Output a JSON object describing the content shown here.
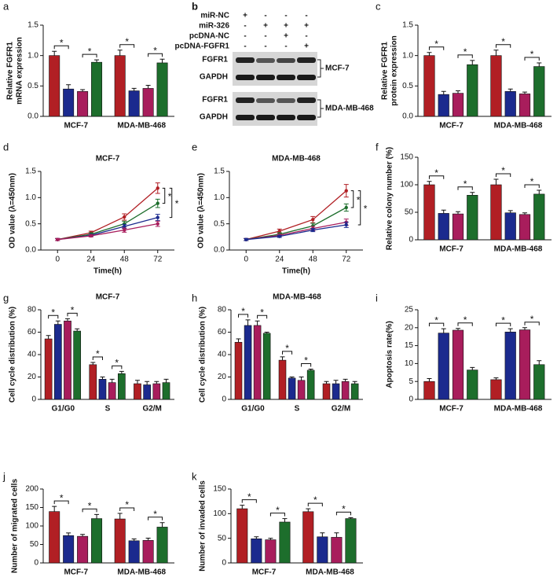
{
  "chart_data": [
    {
      "panel": "a",
      "type": "bar",
      "ylabel": [
        "Relative FGFR1",
        "mRNA expression"
      ],
      "categories": [
        "MCF-7",
        "MDA-MB-468"
      ],
      "series": [
        {
          "color": "#b11f24",
          "values": [
            1.0,
            1.0
          ],
          "errors": [
            0.07,
            0.09
          ]
        },
        {
          "color": "#1b2a8e",
          "values": [
            0.45,
            0.42
          ],
          "errors": [
            0.07,
            0.04
          ]
        },
        {
          "color": "#a81d5c",
          "values": [
            0.41,
            0.46
          ],
          "errors": [
            0.03,
            0.05
          ]
        },
        {
          "color": "#1d6e2c",
          "values": [
            0.89,
            0.88
          ],
          "errors": [
            0.04,
            0.06
          ]
        }
      ],
      "ylim": [
        0,
        1.5
      ],
      "yticks": [
        {
          "value": 0,
          "label": "0.0"
        },
        {
          "value": 0.5,
          "label": "0.5"
        },
        {
          "value": 1,
          "label": "1.0"
        },
        {
          "value": 1.5,
          "label": "1.5"
        }
      ],
      "annotations": [
        {
          "label": "*",
          "category": 0,
          "series": [
            0,
            1
          ]
        },
        {
          "label": "*",
          "category": 0,
          "series": [
            2,
            3
          ]
        },
        {
          "label": "*",
          "category": 1,
          "series": [
            0,
            1
          ]
        },
        {
          "label": "*",
          "category": 1,
          "series": [
            2,
            3
          ]
        }
      ]
    },
    {
      "panel": "c",
      "type": "bar",
      "ylabel": [
        "Relative FGFR1",
        "protein expression"
      ],
      "categories": [
        "MCF-7",
        "MDA-MB-468"
      ],
      "series": [
        {
          "color": "#b11f24",
          "values": [
            1.0,
            1.0
          ],
          "errors": [
            0.05,
            0.09
          ]
        },
        {
          "color": "#1b2a8e",
          "values": [
            0.36,
            0.41
          ],
          "errors": [
            0.05,
            0.04
          ]
        },
        {
          "color": "#a81d5c",
          "values": [
            0.38,
            0.37
          ],
          "errors": [
            0.04,
            0.03
          ]
        },
        {
          "color": "#1d6e2c",
          "values": [
            0.85,
            0.82
          ],
          "errors": [
            0.07,
            0.06
          ]
        }
      ],
      "ylim": [
        0,
        1.5
      ],
      "yticks": [
        {
          "value": 0,
          "label": "0.0"
        },
        {
          "value": 0.5,
          "label": "0.5"
        },
        {
          "value": 1,
          "label": "1.0"
        },
        {
          "value": 1.5,
          "label": "1.5"
        }
      ],
      "annotations": [
        {
          "label": "*",
          "category": 0,
          "series": [
            0,
            1
          ]
        },
        {
          "label": "*",
          "category": 0,
          "series": [
            2,
            3
          ]
        },
        {
          "label": "*",
          "category": 1,
          "series": [
            0,
            1
          ]
        },
        {
          "label": "*",
          "category": 1,
          "series": [
            2,
            3
          ]
        }
      ]
    },
    {
      "panel": "d",
      "type": "line",
      "title": "MCF-7",
      "ylabel": [
        "OD value (λ=450nm)"
      ],
      "xlabel": "Time(h)",
      "x": [
        0,
        24,
        48,
        72
      ],
      "series": [
        {
          "color": "#b11f24",
          "values": [
            0.2,
            0.33,
            0.63,
            1.18
          ],
          "errors": [
            0.02,
            0.03,
            0.06,
            0.1
          ]
        },
        {
          "color": "#1d6e2c",
          "values": [
            0.2,
            0.3,
            0.5,
            0.89
          ],
          "errors": [
            0.02,
            0.03,
            0.05,
            0.08
          ]
        },
        {
          "color": "#1b2a8e",
          "values": [
            0.2,
            0.28,
            0.45,
            0.62
          ],
          "errors": [
            0.02,
            0.02,
            0.04,
            0.06
          ]
        },
        {
          "color": "#a81d5c",
          "values": [
            0.2,
            0.27,
            0.38,
            0.5
          ],
          "errors": [
            0.02,
            0.02,
            0.04,
            0.05
          ]
        }
      ],
      "xlim": [
        -12,
        84
      ],
      "xticks": [
        0,
        24,
        48,
        72
      ],
      "ylim": [
        0,
        1.5
      ],
      "yticks": [
        {
          "value": 0,
          "label": "0.0"
        },
        {
          "value": 0.5,
          "label": "0.5"
        },
        {
          "value": 1,
          "label": "1.0"
        },
        {
          "value": 1.5,
          "label": "1.5"
        }
      ],
      "annotations": [
        {
          "label": "*",
          "series": [
            0,
            1
          ]
        },
        {
          "label": "*",
          "series": [
            0,
            2
          ]
        }
      ]
    },
    {
      "panel": "e",
      "type": "line",
      "title": "MDA-MB-468",
      "ylabel": [
        "OD value (λ=450nm)"
      ],
      "xlabel": "Time(h)",
      "x": [
        0,
        24,
        48,
        72
      ],
      "series": [
        {
          "color": "#b11f24",
          "values": [
            0.2,
            0.36,
            0.58,
            1.13
          ],
          "errors": [
            0.02,
            0.04,
            0.06,
            0.12
          ]
        },
        {
          "color": "#1d6e2c",
          "values": [
            0.2,
            0.3,
            0.46,
            0.81
          ],
          "errors": [
            0.02,
            0.03,
            0.05,
            0.07
          ]
        },
        {
          "color": "#a81d5c",
          "values": [
            0.2,
            0.28,
            0.41,
            0.53
          ],
          "errors": [
            0.02,
            0.02,
            0.04,
            0.06
          ]
        },
        {
          "color": "#1b2a8e",
          "values": [
            0.2,
            0.26,
            0.38,
            0.48
          ],
          "errors": [
            0.02,
            0.02,
            0.03,
            0.05
          ]
        }
      ],
      "xlim": [
        -12,
        84
      ],
      "xticks": [
        0,
        24,
        48,
        72
      ],
      "ylim": [
        0,
        1.5
      ],
      "yticks": [
        {
          "value": 0,
          "label": "0.0"
        },
        {
          "value": 0.5,
          "label": "0.5"
        },
        {
          "value": 1,
          "label": "1.0"
        },
        {
          "value": 1.5,
          "label": "1.5"
        }
      ],
      "annotations": [
        {
          "label": "*",
          "series": [
            0,
            1
          ]
        },
        {
          "label": "*",
          "series": [
            0,
            3
          ]
        }
      ]
    },
    {
      "panel": "f",
      "type": "bar",
      "ylabel": [
        "Relative colony number (%)"
      ],
      "categories": [
        "MCF-7",
        "MDA-MB-468"
      ],
      "series": [
        {
          "color": "#b11f24",
          "values": [
            100,
            100
          ],
          "errors": [
            6,
            10
          ]
        },
        {
          "color": "#1b2a8e",
          "values": [
            48,
            49
          ],
          "errors": [
            6,
            4
          ]
        },
        {
          "color": "#a81d5c",
          "values": [
            47,
            46
          ],
          "errors": [
            4,
            3
          ]
        },
        {
          "color": "#1d6e2c",
          "values": [
            81,
            83
          ],
          "errors": [
            5,
            7
          ]
        }
      ],
      "ylim": [
        0,
        150
      ],
      "yticks": [
        0,
        50,
        100,
        150
      ],
      "annotations": [
        {
          "label": "*",
          "category": 0,
          "series": [
            0,
            1
          ]
        },
        {
          "label": "*",
          "category": 0,
          "series": [
            2,
            3
          ]
        },
        {
          "label": "*",
          "category": 1,
          "series": [
            0,
            1
          ]
        },
        {
          "label": "*",
          "category": 1,
          "series": [
            2,
            3
          ]
        }
      ]
    },
    {
      "panel": "g",
      "type": "bar",
      "title": "MCF-7",
      "ylabel": [
        "Cell cycle distribution (%)"
      ],
      "categories": [
        "G1/G0",
        "S",
        "G2/M"
      ],
      "series": [
        {
          "color": "#b11f24",
          "values": [
            54,
            31,
            14
          ],
          "errors": [
            3,
            2,
            3
          ]
        },
        {
          "color": "#1b2a8e",
          "values": [
            67,
            18,
            13
          ],
          "errors": [
            3,
            2,
            3
          ]
        },
        {
          "color": "#a81d5c",
          "values": [
            70,
            15,
            14
          ],
          "errors": [
            2,
            3,
            2
          ]
        },
        {
          "color": "#1d6e2c",
          "values": [
            61,
            23,
            15
          ],
          "errors": [
            2,
            2,
            3
          ]
        }
      ],
      "ylim": [
        0,
        80
      ],
      "yticks": [
        0,
        20,
        40,
        60,
        80
      ],
      "annotations": [
        {
          "label": "*",
          "category": 0,
          "series": [
            0,
            1
          ]
        },
        {
          "label": "*",
          "category": 0,
          "series": [
            2,
            3
          ]
        },
        {
          "label": "*",
          "category": 1,
          "series": [
            0,
            1
          ]
        },
        {
          "label": "*",
          "category": 1,
          "series": [
            2,
            3
          ]
        }
      ]
    },
    {
      "panel": "h",
      "type": "bar",
      "title": "MDA-MB-468",
      "ylabel": [
        "Cell cycle distribution (%)"
      ],
      "categories": [
        "G1/G0",
        "S",
        "G2/M"
      ],
      "series": [
        {
          "color": "#b11f24",
          "values": [
            51,
            35,
            14
          ],
          "errors": [
            3,
            3,
            2
          ]
        },
        {
          "color": "#1b2a8e",
          "values": [
            66,
            19,
            14
          ],
          "errors": [
            5,
            1,
            3
          ]
        },
        {
          "color": "#a81d5c",
          "values": [
            66,
            17,
            16
          ],
          "errors": [
            4,
            3,
            2
          ]
        },
        {
          "color": "#1d6e2c",
          "values": [
            59,
            26,
            14
          ],
          "errors": [
            1,
            1,
            2
          ]
        }
      ],
      "ylim": [
        0,
        80
      ],
      "yticks": [
        0,
        20,
        40,
        60,
        80
      ],
      "annotations": [
        {
          "label": "*",
          "category": 0,
          "series": [
            0,
            1
          ]
        },
        {
          "label": "*",
          "category": 0,
          "series": [
            2,
            3
          ]
        },
        {
          "label": "*",
          "category": 1,
          "series": [
            0,
            1
          ]
        },
        {
          "label": "*",
          "category": 1,
          "series": [
            2,
            3
          ]
        }
      ]
    },
    {
      "panel": "i",
      "type": "bar",
      "ylabel": [
        "Apoptosis rate(%)"
      ],
      "categories": [
        "MCF-7",
        "MDA-MB-468"
      ],
      "series": [
        {
          "color": "#b11f24",
          "values": [
            5,
            5.5
          ],
          "errors": [
            0.8,
            0.5
          ]
        },
        {
          "color": "#1b2a8e",
          "values": [
            18.5,
            18.8
          ],
          "errors": [
            1.2,
            0.9
          ]
        },
        {
          "color": "#a81d5c",
          "values": [
            19.3,
            19.4
          ],
          "errors": [
            0.5,
            0.6
          ]
        },
        {
          "color": "#1d6e2c",
          "values": [
            8.2,
            9.7
          ],
          "errors": [
            0.7,
            1.1
          ]
        }
      ],
      "ylim": [
        0,
        25
      ],
      "yticks": [
        0,
        5,
        10,
        15,
        20,
        25
      ],
      "annotations": [
        {
          "label": "*",
          "category": 0,
          "series": [
            0,
            1
          ]
        },
        {
          "label": "*",
          "category": 0,
          "series": [
            2,
            3
          ]
        },
        {
          "label": "*",
          "category": 1,
          "series": [
            0,
            1
          ]
        },
        {
          "label": "*",
          "category": 1,
          "series": [
            2,
            3
          ]
        }
      ]
    },
    {
      "panel": "j",
      "type": "bar",
      "ylabel": [
        "Number of migrated cells"
      ],
      "categories": [
        "MCF-7",
        "MDA-MB-468"
      ],
      "series": [
        {
          "color": "#b11f24",
          "values": [
            139,
            119
          ],
          "errors": [
            14,
            15
          ]
        },
        {
          "color": "#1b2a8e",
          "values": [
            74,
            60
          ],
          "errors": [
            7,
            5
          ]
        },
        {
          "color": "#a81d5c",
          "values": [
            72,
            61
          ],
          "errors": [
            5,
            6
          ]
        },
        {
          "color": "#1d6e2c",
          "values": [
            120,
            97
          ],
          "errors": [
            11,
            12
          ]
        }
      ],
      "ylim": [
        0,
        200
      ],
      "yticks": [
        0,
        50,
        100,
        150,
        200
      ],
      "annotations": [
        {
          "label": "*",
          "category": 0,
          "series": [
            0,
            1
          ]
        },
        {
          "label": "*",
          "category": 0,
          "series": [
            2,
            3
          ]
        },
        {
          "label": "*",
          "category": 1,
          "series": [
            0,
            1
          ]
        },
        {
          "label": "*",
          "category": 1,
          "series": [
            2,
            3
          ]
        }
      ]
    },
    {
      "panel": "k",
      "type": "bar",
      "ylabel": [
        "Number of invaded cells"
      ],
      "categories": [
        "MCF-7",
        "MDA-MB-468"
      ],
      "series": [
        {
          "color": "#b11f24",
          "values": [
            110,
            104
          ],
          "errors": [
            7,
            6
          ]
        },
        {
          "color": "#1b2a8e",
          "values": [
            49,
            53
          ],
          "errors": [
            4,
            8
          ]
        },
        {
          "color": "#a81d5c",
          "values": [
            47,
            52
          ],
          "errors": [
            3,
            9
          ]
        },
        {
          "color": "#1d6e2c",
          "values": [
            83,
            90
          ],
          "errors": [
            7,
            2
          ]
        }
      ],
      "ylim": [
        0,
        150
      ],
      "yticks": [
        0,
        50,
        100,
        150
      ],
      "annotations": [
        {
          "label": "*",
          "category": 0,
          "series": [
            0,
            1
          ]
        },
        {
          "label": "*",
          "category": 0,
          "series": [
            2,
            3
          ]
        },
        {
          "label": "*",
          "category": 1,
          "series": [
            0,
            1
          ]
        },
        {
          "label": "*",
          "category": 1,
          "series": [
            2,
            3
          ]
        }
      ]
    }
  ],
  "blot": {
    "panel": "b",
    "treatments": [
      {
        "label": "miR-NC",
        "marks": [
          "+",
          "-",
          "-",
          "-"
        ]
      },
      {
        "label": "miR-326",
        "marks": [
          "-",
          "+",
          "+",
          "+"
        ]
      },
      {
        "label": "pcDNA-NC",
        "marks": [
          "-",
          "-",
          "+",
          "-"
        ]
      },
      {
        "label": "pcDNA-FGFR1",
        "marks": [
          "-",
          "-",
          "-",
          "+"
        ]
      }
    ],
    "bands": [
      "FGFR1",
      "GAPDH",
      "FGFR1",
      "GAPDH"
    ],
    "cell_lines": [
      "MCF-7",
      "MDA-MB-468"
    ]
  }
}
